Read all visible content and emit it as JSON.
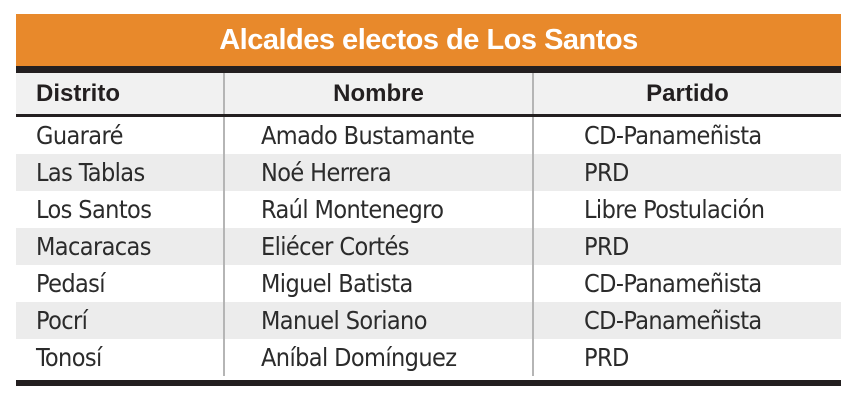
{
  "title": "Alcaldes electos de Los Santos",
  "headers": [
    "Distrito",
    "Nombre",
    "Partido"
  ],
  "rows": [
    [
      "Guararé",
      "Amado Bustamante",
      "CD-Panameñista"
    ],
    [
      "Las Tablas",
      "Noé Herrera",
      "PRD"
    ],
    [
      "Los Santos",
      "Raúl Montenegro",
      "Libre Postulación"
    ],
    [
      "Macaracas",
      "Eliécer Cortés",
      "PRD"
    ],
    [
      "Pedasí",
      "Miguel Batista",
      "CD-Panameñista"
    ],
    [
      "Pocrí",
      "Manuel Soriano",
      "CD-Panameñista"
    ],
    [
      "Tonosí",
      "Aníbal Domínguez",
      "PRD"
    ]
  ],
  "colors": {
    "banner": "#e8892b",
    "rule": "#231f20",
    "stripe": "#ececec"
  }
}
